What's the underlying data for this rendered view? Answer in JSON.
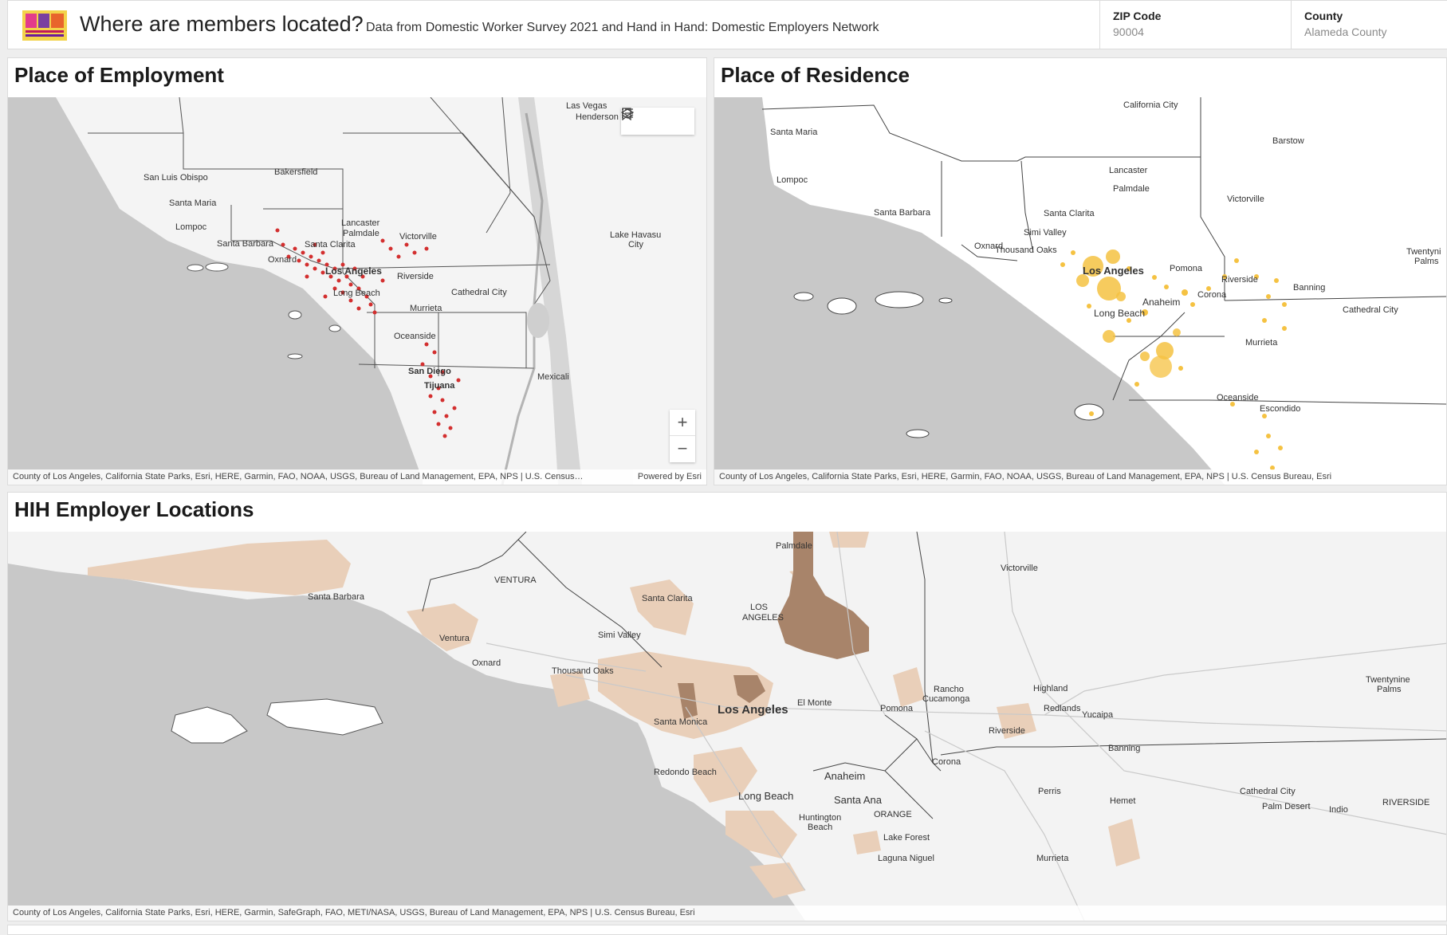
{
  "header": {
    "title": "Where are members located?",
    "subtitle": "Data from Domestic Worker Survey 2021 and Hand in Hand: Domestic Employers Network",
    "logo_icon": "coalition-logo-icon",
    "filters": [
      {
        "label": "ZIP Code",
        "value": "90004"
      },
      {
        "label": "County",
        "value": "Alameda County"
      }
    ]
  },
  "employment": {
    "title": "Place of Employment",
    "labels": {
      "las_vegas": "Las Vegas",
      "henderson": "Henderson",
      "bakersfield": "Bakersfield",
      "san_luis_obispo": "San Luis Obispo",
      "santa_maria": "Santa Maria",
      "lompoc": "Lompoc",
      "lancaster": "Lancaster",
      "palmdale": "Palmdale",
      "victorville": "Victorville",
      "lake_havasu": "Lake Havasu",
      "city": "City",
      "santa_barbara": "Santa Barbara",
      "santa_clarita": "Santa Clarita",
      "oxnard": "Oxnard",
      "los_angeles": "Los Angeles",
      "riverside": "Riverside",
      "long_beach": "Long Beach",
      "cathedral_city": "Cathedral City",
      "murrieta": "Murrieta",
      "oceanside": "Oceanside",
      "san_diego": "San Diego",
      "tijuana": "Tijuana",
      "mexicali": "Mexicali"
    },
    "attribution": "County of Los Angeles, California State Parks, Esri, HERE, Garmin, FAO, NOAA, USGS, Bureau of Land Management, EPA, NPS | U.S. Census…",
    "powered_by": "Powered by Esri",
    "zoom_in": "+",
    "zoom_out": "−",
    "point_color": "#d32f2f"
  },
  "residence": {
    "title": "Place of Residence",
    "labels": {
      "california_city": "California City",
      "santa_maria": "Santa Maria",
      "barstow": "Barstow",
      "lancaster": "Lancaster",
      "palmdale": "Palmdale",
      "lompoc": "Lompoc",
      "victorville": "Victorville",
      "santa_barbara": "Santa Barbara",
      "santa_clarita": "Santa Clarita",
      "simi_valley": "Simi Valley",
      "oxnard": "Oxnard",
      "thousand_oaks": "Thousand Oaks",
      "twentynine": "Twentyni",
      "palms": "Palms",
      "los_angeles": "Los Angeles",
      "pomona": "Pomona",
      "riverside": "Riverside",
      "banning": "Banning",
      "anaheim": "Anaheim",
      "corona": "Corona",
      "cathedral_city": "Cathedral City",
      "long_beach": "Long Beach",
      "murrieta": "Murrieta",
      "oceanside": "Oceanside",
      "escondido": "Escondido"
    },
    "attribution": "County of Los Angeles, California State Parks, Esri, HERE, Garmin, FAO, NOAA, USGS, Bureau of Land Management, EPA, NPS | U.S. Census Bureau, Esri",
    "point_color": "#f5c242"
  },
  "employer": {
    "title": "HIH Employer Locations",
    "labels": {
      "palmdale": "Palmdale",
      "ventura_county": "VENTURA",
      "victorville": "Victorville",
      "santa_barbara": "Santa Barbara",
      "santa_clarita": "Santa Clarita",
      "los": "LOS",
      "angeles_county": "ANGELES",
      "simi_valley": "Simi Valley",
      "ventura": "Ventura",
      "oxnard": "Oxnard",
      "thousand_oaks": "Thousand Oaks",
      "twentynine": "Twentynine",
      "palms": "Palms",
      "rancho": "Rancho",
      "cucamonga": "Cucamonga",
      "highland": "Highland",
      "el_monte": "El Monte",
      "los_angeles": "Los Angeles",
      "pomona": "Pomona",
      "redlands": "Redlands",
      "yucaipa": "Yucaipa",
      "santa_monica": "Santa Monica",
      "riverside": "Riverside",
      "banning": "Banning",
      "corona": "Corona",
      "redondo_beach": "Redondo Beach",
      "anaheim": "Anaheim",
      "perris": "Perris",
      "cathedral_city": "Cathedral City",
      "hemet": "Hemet",
      "palm_desert": "Palm Desert",
      "indio": "Indio",
      "riverside_county": "RIVERSIDE",
      "long_beach": "Long Beach",
      "santa_ana": "Santa Ana",
      "huntington": "Huntington",
      "beach": "Beach",
      "orange_county": "ORANGE",
      "lake_forest": "Lake Forest",
      "laguna_niguel": "Laguna Niguel",
      "murrieta": "Murrieta"
    },
    "attribution": "County of Los Angeles, California State Parks, Esri, HERE, Garmin, SafeGraph, FAO, METI/NASA, USGS, Bureau of Land Management, EPA, NPS | U.S. Census Bureau, Esri",
    "fill_light": "#e9cfb9",
    "fill_dark": "#a8846a"
  }
}
